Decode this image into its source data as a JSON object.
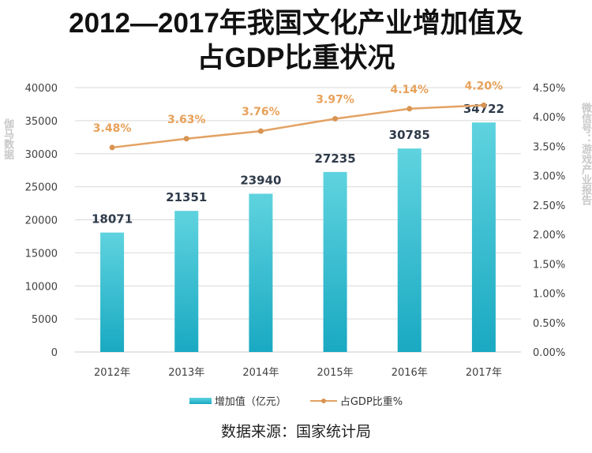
{
  "title": {
    "line1": "2012—2017年我国文化产业增加值及",
    "line2": "占GDP比重状况"
  },
  "watermark": {
    "main": "伽马数据",
    "sub": "微信号：游戏产业报告"
  },
  "source": "数据来源：国家统计局",
  "colors": {
    "bar_top": "#5fd3df",
    "bar_bottom": "#19a9c2",
    "line": "#e3a263",
    "line_label": "#e8a15a",
    "bar_label": "#2f3b4a",
    "grid": "#d9d9d9"
  },
  "chart_data": {
    "type": "bar",
    "title": "2012—2017年我国文化产业增加值及占GDP比重状况",
    "categories": [
      "2012年",
      "2013年",
      "2014年",
      "2015年",
      "2016年",
      "2017年"
    ],
    "series": [
      {
        "name": "增加值（亿元）",
        "type": "bar",
        "axis": "left",
        "values": [
          18071,
          21351,
          23940,
          27235,
          30785,
          34722
        ],
        "labels": [
          "18071",
          "21351",
          "23940",
          "27235",
          "30785",
          "34722"
        ]
      },
      {
        "name": "占GDP比重%",
        "type": "line",
        "axis": "right",
        "values": [
          3.48,
          3.63,
          3.76,
          3.97,
          4.14,
          4.2
        ],
        "labels": [
          "3.48%",
          "3.63%",
          "3.76%",
          "3.97%",
          "4.14%",
          "4.20%"
        ]
      }
    ],
    "left_axis": {
      "ylim": [
        0,
        40000
      ],
      "ticks": [
        "0",
        "5000",
        "10000",
        "15000",
        "20000",
        "25000",
        "30000",
        "35000",
        "40000"
      ]
    },
    "right_axis": {
      "ylim": [
        0,
        4.5
      ],
      "ticks": [
        "0.00%",
        "0.50%",
        "1.00%",
        "1.50%",
        "2.00%",
        "2.50%",
        "3.00%",
        "3.50%",
        "4.00%",
        "4.50%"
      ]
    },
    "grid": true,
    "legend": "bottom-center",
    "legend_entries": [
      "增加值（亿元）",
      "占GDP比重%"
    ]
  }
}
